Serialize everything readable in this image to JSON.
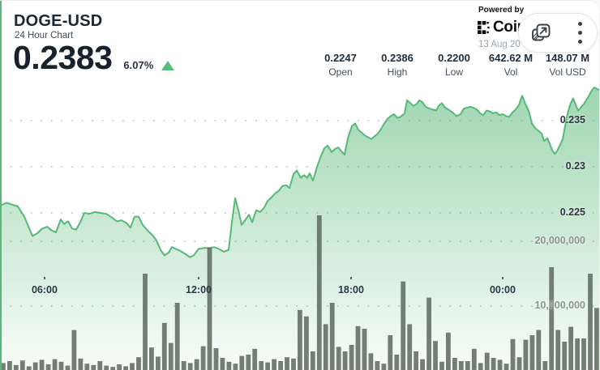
{
  "widget": {
    "symbol": "DOGE-USD",
    "subtitle": "24 Hour Chart",
    "last_price": "0.2383",
    "change_pct": "6.07%",
    "change_direction": "up",
    "stats": [
      {
        "value": "0.2247",
        "label": "Open"
      },
      {
        "value": "0.2386",
        "label": "High"
      },
      {
        "value": "0.2200",
        "label": "Low"
      },
      {
        "value": "642.62 M",
        "label": "Vol"
      },
      {
        "value": "148.07 M",
        "label": "Vol USD"
      }
    ],
    "powered_by_label": "Powered by",
    "provider_name": "Coin",
    "date_shown": "13 Aug 20",
    "colors": {
      "accent_green": "#57b877",
      "area_fill_green": "#57b877",
      "volume_bar": "#5d685d",
      "dark_text": "#1b2733",
      "gray_text": "#9ba3ab",
      "tick_text": "#2c3843",
      "volume_tick_text": "#8d968c"
    }
  },
  "toolbar": {
    "icons": [
      "open-in-new-window",
      "more-options-menu"
    ]
  },
  "chart_data": {
    "type": "area",
    "title": "DOGE-USD 24 Hour Chart",
    "open": 0.2247,
    "high": 0.2386,
    "low": 0.22,
    "last": 0.2383,
    "volume": "642.62 M",
    "volume_usd": "148.07 M",
    "grid": "dotted",
    "legend": "none",
    "price_axis": {
      "side": "right",
      "ticks": [
        {
          "label": "0.235",
          "value": 0.235
        },
        {
          "label": "0.23",
          "value": 0.23
        },
        {
          "label": "0.225",
          "value": 0.225
        }
      ],
      "implied_range": [
        0.2196,
        0.2392
      ]
    },
    "volume_axis": {
      "side": "right",
      "ticks": [
        {
          "label": "20,000,000",
          "value": 20000000
        },
        {
          "label": "10,000,000",
          "value": 10000000
        }
      ],
      "range": [
        0,
        24500000
      ]
    },
    "x_ticks": [
      {
        "label": "06:00",
        "f": 0.0743
      },
      {
        "label": "12:00",
        "f": 0.3311
      },
      {
        "label": "18:00",
        "f": 0.5851
      },
      {
        "label": "00:00",
        "f": 0.8378
      }
    ],
    "price_points_xpx": [
      [
        0,
        0.2258
      ],
      [
        8,
        0.2261
      ],
      [
        15,
        0.2259
      ],
      [
        22,
        0.2257
      ],
      [
        30,
        0.2246
      ],
      [
        40,
        0.2225
      ],
      [
        46,
        0.2228
      ],
      [
        52,
        0.2233
      ],
      [
        58,
        0.2235
      ],
      [
        64,
        0.2231
      ],
      [
        69,
        0.2229
      ],
      [
        75,
        0.2243
      ],
      [
        79,
        0.2238
      ],
      [
        84,
        0.2241
      ],
      [
        89,
        0.2233
      ],
      [
        94,
        0.2232
      ],
      [
        99,
        0.224
      ],
      [
        104,
        0.225
      ],
      [
        110,
        0.2249
      ],
      [
        117,
        0.2251
      ],
      [
        124,
        0.225
      ],
      [
        131,
        0.2249
      ],
      [
        138,
        0.2245
      ],
      [
        144,
        0.2241
      ],
      [
        150,
        0.2242
      ],
      [
        156,
        0.2239
      ],
      [
        161,
        0.2234
      ],
      [
        166,
        0.2246
      ],
      [
        171,
        0.2246
      ],
      [
        176,
        0.2237
      ],
      [
        182,
        0.2231
      ],
      [
        188,
        0.2226
      ],
      [
        193,
        0.222
      ],
      [
        198,
        0.221
      ],
      [
        203,
        0.2204
      ],
      [
        208,
        0.2207
      ],
      [
        212,
        0.2213
      ],
      [
        217,
        0.2211
      ],
      [
        222,
        0.2209
      ],
      [
        228,
        0.2206
      ],
      [
        234,
        0.2202
      ],
      [
        239,
        0.2204
      ],
      [
        245,
        0.2211
      ],
      [
        251,
        0.2212
      ],
      [
        258,
        0.2212
      ],
      [
        264,
        0.2213
      ],
      [
        270,
        0.2211
      ],
      [
        276,
        0.2208
      ],
      [
        282,
        0.221
      ],
      [
        286,
        0.224
      ],
      [
        290,
        0.2266
      ],
      [
        294,
        0.2253
      ],
      [
        298,
        0.2237
      ],
      [
        303,
        0.2243
      ],
      [
        307,
        0.2248
      ],
      [
        311,
        0.224
      ],
      [
        316,
        0.2253
      ],
      [
        321,
        0.2251
      ],
      [
        326,
        0.2256
      ],
      [
        330,
        0.2263
      ],
      [
        334,
        0.2266
      ],
      [
        339,
        0.2271
      ],
      [
        344,
        0.2274
      ],
      [
        348,
        0.2279
      ],
      [
        353,
        0.228
      ],
      [
        357,
        0.2277
      ],
      [
        362,
        0.2292
      ],
      [
        366,
        0.2296
      ],
      [
        371,
        0.2288
      ],
      [
        375,
        0.2291
      ],
      [
        379,
        0.2288
      ],
      [
        382,
        0.2293
      ],
      [
        386,
        0.2285
      ],
      [
        391,
        0.23
      ],
      [
        396,
        0.2312
      ],
      [
        400,
        0.232
      ],
      [
        404,
        0.2323
      ],
      [
        409,
        0.2316
      ],
      [
        413,
        0.2319
      ],
      [
        417,
        0.2321
      ],
      [
        421,
        0.2317
      ],
      [
        425,
        0.2313
      ],
      [
        429,
        0.2331
      ],
      [
        434,
        0.2344
      ],
      [
        438,
        0.2347
      ],
      [
        442,
        0.234
      ],
      [
        446,
        0.2337
      ],
      [
        450,
        0.2334
      ],
      [
        454,
        0.2332
      ],
      [
        458,
        0.233
      ],
      [
        462,
        0.2333
      ],
      [
        466,
        0.2336
      ],
      [
        470,
        0.2341
      ],
      [
        474,
        0.2347
      ],
      [
        478,
        0.2352
      ],
      [
        482,
        0.2355
      ],
      [
        486,
        0.2357
      ],
      [
        490,
        0.2353
      ],
      [
        494,
        0.2354
      ],
      [
        499,
        0.2358
      ],
      [
        502,
        0.2372
      ],
      [
        506,
        0.2369
      ],
      [
        510,
        0.2366
      ],
      [
        514,
        0.2368
      ],
      [
        517,
        0.2372
      ],
      [
        521,
        0.237
      ],
      [
        525,
        0.2365
      ],
      [
        530,
        0.2363
      ],
      [
        534,
        0.2362
      ],
      [
        538,
        0.2361
      ],
      [
        541,
        0.2366
      ],
      [
        545,
        0.2369
      ],
      [
        549,
        0.2364
      ],
      [
        553,
        0.2362
      ],
      [
        558,
        0.2359
      ],
      [
        563,
        0.2355
      ],
      [
        568,
        0.2357
      ],
      [
        572,
        0.2363
      ],
      [
        576,
        0.2364
      ],
      [
        580,
        0.2365
      ],
      [
        584,
        0.2364
      ],
      [
        588,
        0.2362
      ],
      [
        592,
        0.2358
      ],
      [
        596,
        0.2356
      ],
      [
        600,
        0.2361
      ],
      [
        604,
        0.236
      ],
      [
        608,
        0.2358
      ],
      [
        612,
        0.2359
      ],
      [
        616,
        0.2356
      ],
      [
        620,
        0.2357
      ],
      [
        624,
        0.2355
      ],
      [
        628,
        0.2354
      ],
      [
        632,
        0.2359
      ],
      [
        636,
        0.2362
      ],
      [
        640,
        0.2367
      ],
      [
        644,
        0.2377
      ],
      [
        648,
        0.2368
      ],
      [
        652,
        0.2361
      ],
      [
        656,
        0.2347
      ],
      [
        660,
        0.2342
      ],
      [
        664,
        0.2339
      ],
      [
        668,
        0.2336
      ],
      [
        671,
        0.2328
      ],
      [
        675,
        0.2331
      ],
      [
        678,
        0.2325
      ],
      [
        681,
        0.2318
      ],
      [
        684,
        0.2314
      ],
      [
        687,
        0.2317
      ],
      [
        691,
        0.2324
      ],
      [
        694,
        0.233
      ],
      [
        698,
        0.2349
      ],
      [
        701,
        0.2361
      ],
      [
        704,
        0.2369
      ],
      [
        707,
        0.2374
      ],
      [
        710,
        0.2367
      ],
      [
        713,
        0.2361
      ],
      [
        717,
        0.2365
      ],
      [
        720,
        0.2368
      ],
      [
        723,
        0.2372
      ],
      [
        727,
        0.2378
      ],
      [
        730,
        0.2383
      ],
      [
        733,
        0.2386
      ],
      [
        737,
        0.2384
      ],
      [
        740,
        0.2383
      ]
    ],
    "volume_bars_millions": [
      1.2,
      1.5,
      0.9,
      1.6,
      0.7,
      1.3,
      1.7,
      1.0,
      1.8,
      1.4,
      0.8,
      6.3,
      1.9,
      1.1,
      0.9,
      1.5,
      0.8,
      0.6,
      1.0,
      0.7,
      1.2,
      2.1,
      15.0,
      3.6,
      2.2,
      7.4,
      4.3,
      10.5,
      1.5,
      1.2,
      1.8,
      3.8,
      19.0,
      3.5,
      2.0,
      1.4,
      1.1,
      2.3,
      2.5,
      3.4,
      1.5,
      1.3,
      1.8,
      1.5,
      2.1,
      1.9,
      9.4,
      8.4,
      3.0,
      24.0,
      7.2,
      10.5,
      3.7,
      3.0,
      4.0,
      6.9,
      6.5,
      2.7,
      1.5,
      1.1,
      5.5,
      2.5,
      13.8,
      7.2,
      3.0,
      1.8,
      11.3,
      4.6,
      1.4,
      5.9,
      2.0,
      1.5,
      1.5,
      3.4,
      1.2,
      2.8,
      2.0,
      1.7,
      1.1,
      4.9,
      2.1,
      4.8,
      5.5,
      6.3,
      1.5,
      16.0,
      6.3,
      4.5,
      6.8,
      5.0,
      5.0,
      15.0,
      9.7
    ]
  }
}
